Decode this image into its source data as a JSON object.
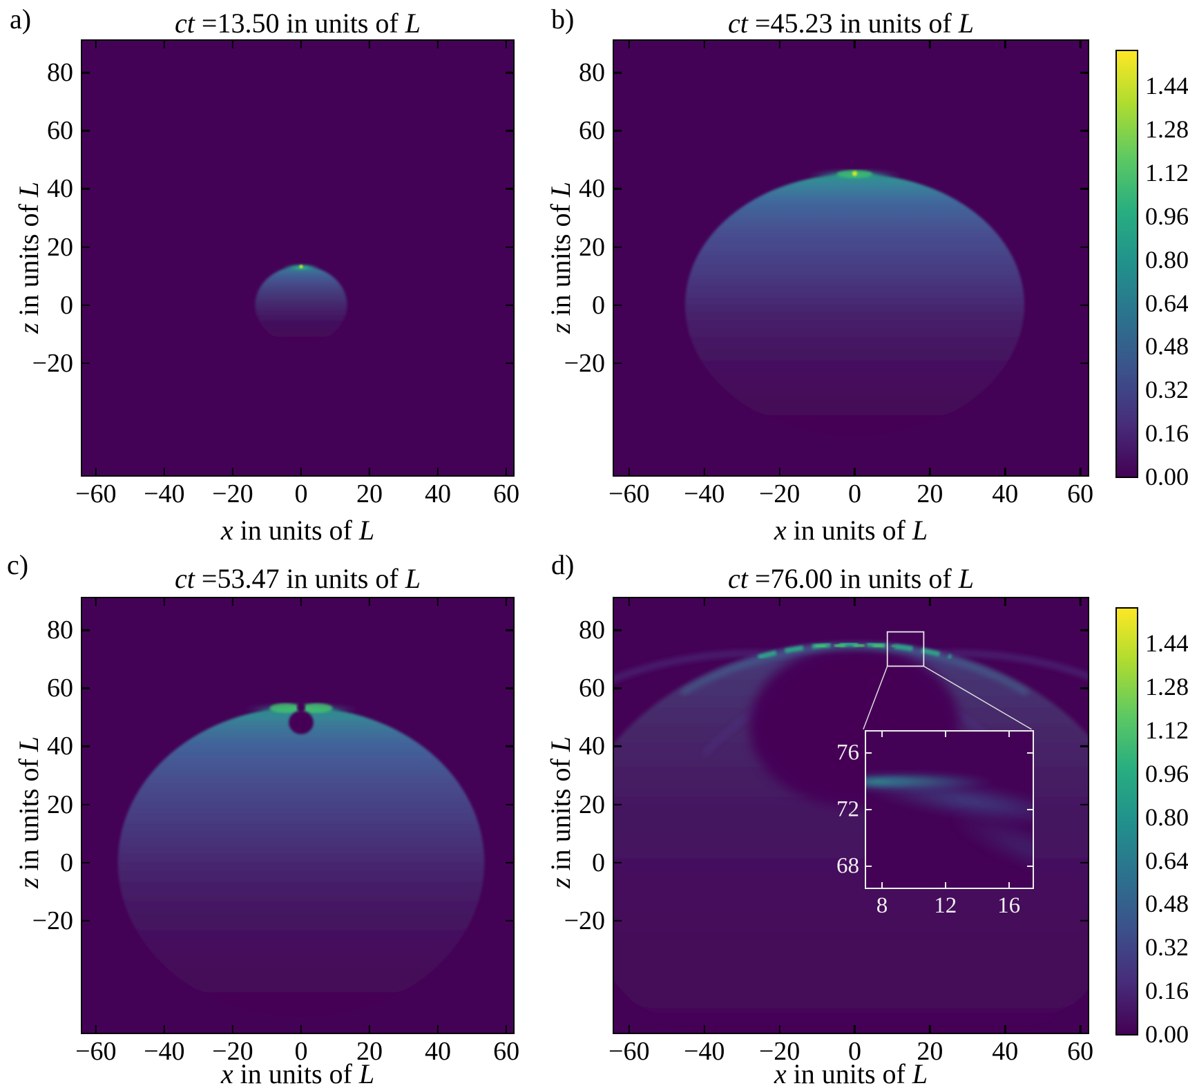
{
  "panels": {
    "a": {
      "corner": "a)",
      "title_var": "ct",
      "title_rest": " =13.50 in units of ",
      "title_unit": "L"
    },
    "b": {
      "corner": "b)",
      "title_var": "ct",
      "title_rest": " =45.23 in units of ",
      "title_unit": "L"
    },
    "c": {
      "corner": "c)",
      "title_var": "ct",
      "title_rest": " =53.47 in units of ",
      "title_unit": "L"
    },
    "d": {
      "corner": "d)",
      "title_var": "ct",
      "title_rest": " =76.00 in units of ",
      "title_unit": "L"
    }
  },
  "axes": {
    "xlabel_var": "x",
    "xlabel_mid": " in units of ",
    "xlabel_unit": "L",
    "ylabel_var": "z",
    "ylabel_mid": " in units of ",
    "ylabel_unit": "L",
    "x_ticks": [
      "−60",
      "−40",
      "−20",
      "0",
      "20",
      "40",
      "60"
    ],
    "y_ticks": [
      "80",
      "60",
      "40",
      "20",
      "0",
      "−20"
    ]
  },
  "colorbar": {
    "ticks": [
      "1.44",
      "1.28",
      "1.12",
      "0.96",
      "0.80",
      "0.64",
      "0.48",
      "0.32",
      "0.16",
      "0.00"
    ]
  },
  "inset": {
    "x_ticks": [
      "8",
      "12",
      "16"
    ],
    "y_ticks": [
      "76",
      "72",
      "68"
    ]
  },
  "chart_data": {
    "type": "heatmap",
    "colormap": "viridis",
    "layout": "2x2 grid of pseudocolor maps, shared colorbar per row on the right",
    "xlabel": "x in units of L",
    "ylabel": "z in units of L",
    "x_ticks": [
      -60,
      -40,
      -20,
      0,
      20,
      40,
      60
    ],
    "z_ticks": [
      -20,
      0,
      20,
      40,
      60,
      80
    ],
    "x_range": [
      -64,
      62
    ],
    "z_range": [
      -58.6,
      91
    ],
    "colorbar_ticks": [
      0.0,
      0.16,
      0.32,
      0.48,
      0.64,
      0.8,
      0.96,
      1.12,
      1.28,
      1.44
    ],
    "colorbar_range": [
      0.0,
      1.57
    ],
    "background_value": 0.0,
    "panels": [
      {
        "label": "a)",
        "title": "ct =13.50 in units of L",
        "ct": 13.5,
        "wavefront_center": [
          0,
          0
        ],
        "wavefront_radius": 13.5,
        "pulse_position": [
          0,
          13
        ],
        "description": "small expanding spherical wake, bright green-yellow driver pulse at its apex"
      },
      {
        "label": "b)",
        "title": "ct =45.23 in units of L",
        "ct": 45.23,
        "wavefront_center": [
          0,
          0
        ],
        "wavefront_radius": 45,
        "pulse_position": [
          0,
          45
        ],
        "description": "larger sphere, yellow pulse spot and teal crest along top rim, interior fades blue to purple"
      },
      {
        "label": "c)",
        "title": "ct =53.47 in units of L",
        "ct": 53.47,
        "wavefront_center": [
          0,
          0
        ],
        "wavefront_radius": 53.5,
        "pulse_position": [
          0,
          53
        ],
        "cavity_center": [
          0,
          48.3
        ],
        "cavity_radius": 3.5,
        "description": "crest split into two green lobes with central gap; small dark bubble just below the crest"
      },
      {
        "label": "d)",
        "title": "ct =76.00 in units of L",
        "ct": 76.0,
        "wavefront_center": [
          0,
          0
        ],
        "wavefront_radius": 76,
        "pulse_position": [
          0,
          75.5
        ],
        "cavity_center": [
          0,
          47
        ],
        "cavity_radius": 28,
        "description": "fragmented dashed teal crest arc at z≈75, two faint secondary arcs crossing below it, large dark cavity around (0,47)",
        "inset": {
          "x_range": [
            7,
            17.5
          ],
          "z_range": [
            66.5,
            77.5
          ],
          "x_ticks": [
            8,
            12,
            16
          ],
          "z_ticks": [
            68,
            72,
            76
          ],
          "marker_region_x": [
            5,
            15
          ],
          "marker_region_z": [
            69,
            78.5
          ],
          "description": "zoom of crest edge: teal beam entering at left near z=74 spreading down-right"
        }
      }
    ]
  }
}
